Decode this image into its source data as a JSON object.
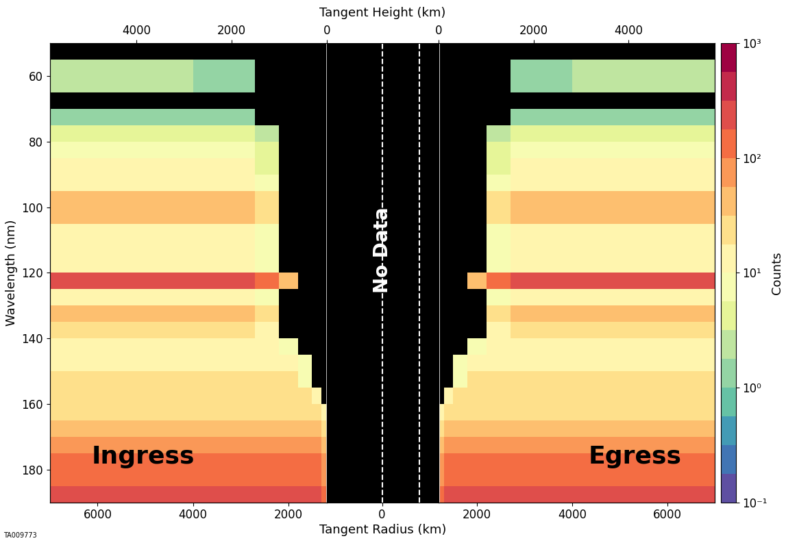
{
  "chart_data": {
    "type": "heatmap",
    "x_label": "Tangent Radius (km)",
    "x2_label": "Tangent Height (km)",
    "y_label": "Wavelength (nm)",
    "colorbar_label": "Counts",
    "figure_id": "TA009773",
    "log": true,
    "ylim": [
      190,
      50
    ],
    "yticks": [
      60,
      80,
      100,
      120,
      140,
      160,
      180
    ],
    "y_bins": [
      50,
      55,
      60,
      65,
      70,
      75,
      80,
      85,
      90,
      95,
      100,
      105,
      110,
      115,
      120,
      125,
      130,
      135,
      140,
      145,
      150,
      155,
      160,
      165,
      170,
      175,
      180,
      185,
      190
    ],
    "colorbar_range": [
      0.1,
      1000
    ],
    "colorbar_ticks": [
      {
        "value": 0.1,
        "label": "10⁻¹"
      },
      {
        "value": 1,
        "label": "10⁰"
      },
      {
        "value": 10,
        "label": "10¹"
      },
      {
        "value": 100,
        "label": "10²"
      },
      {
        "value": 1000,
        "label": "10³"
      }
    ],
    "panels": [
      {
        "name": "Ingress",
        "xlim": [
          7000,
          1190
        ],
        "xticks": [
          6000,
          4000,
          2000
        ],
        "x2lim": [
          5810,
          0
        ],
        "x2ticks": [
          4000,
          2000,
          0
        ],
        "x_bins": [
          1190,
          1300,
          1500,
          1800,
          2200,
          2700,
          4000,
          5500,
          7000
        ],
        "cells": [
          [
            0,
            0,
            0,
            0,
            0,
            0,
            0,
            0
          ],
          [
            0,
            0,
            0,
            0,
            0,
            1,
            2,
            2
          ],
          [
            0,
            0,
            0,
            0,
            0,
            1,
            2,
            2
          ],
          [
            0,
            0,
            0,
            0,
            0,
            0,
            0,
            0
          ],
          [
            0,
            0,
            0,
            0,
            0,
            1,
            1.5,
            1.5
          ],
          [
            0,
            0,
            0,
            0,
            2,
            4,
            5,
            5
          ],
          [
            0,
            0,
            0,
            0,
            4,
            8,
            8,
            8
          ],
          [
            0,
            0,
            0,
            0,
            5,
            10,
            10,
            10
          ],
          [
            0,
            0,
            0,
            0,
            6,
            12,
            12,
            12
          ],
          [
            0,
            0,
            0,
            0,
            20,
            40,
            40,
            40
          ],
          [
            0,
            0,
            0,
            0,
            20,
            40,
            40,
            40
          ],
          [
            0,
            0,
            0,
            0,
            8,
            15,
            15,
            15
          ],
          [
            0,
            0,
            0,
            0,
            6,
            12,
            12,
            12
          ],
          [
            0,
            0,
            0,
            0,
            8,
            15,
            15,
            15
          ],
          [
            0,
            0,
            0,
            50,
            150,
            300,
            300,
            300
          ],
          [
            0,
            0,
            0,
            0,
            8,
            15,
            15,
            15
          ],
          [
            0,
            0,
            0,
            0,
            20,
            40,
            40,
            40
          ],
          [
            0,
            0,
            0,
            0,
            10,
            20,
            20,
            20
          ],
          [
            0,
            0,
            0,
            8,
            15,
            15,
            15,
            15
          ],
          [
            0,
            0,
            8,
            15,
            15,
            15,
            15,
            15
          ],
          [
            0,
            0,
            9,
            18,
            18,
            18,
            18,
            18
          ],
          [
            0,
            10,
            20,
            20,
            20,
            20,
            20,
            20
          ],
          [
            15,
            25,
            25,
            25,
            25,
            25,
            25,
            25
          ],
          [
            20,
            35,
            35,
            35,
            35,
            35,
            35,
            35
          ],
          [
            50,
            80,
            80,
            80,
            80,
            80,
            80,
            80
          ],
          [
            60,
            100,
            100,
            100,
            100,
            100,
            100,
            100
          ],
          [
            90,
            150,
            150,
            150,
            150,
            150,
            150,
            150
          ],
          [
            120,
            200,
            200,
            200,
            200,
            200,
            200,
            200
          ]
        ]
      },
      {
        "name": "No Data",
        "xlim": [
          -900,
          920
        ],
        "xticks": [
          0
        ],
        "dashed_lines": [
          0,
          610
        ]
      },
      {
        "name": "Egress",
        "xlim": [
          1190,
          7000
        ],
        "xticks": [
          2000,
          4000,
          6000
        ],
        "x2lim": [
          0,
          5810
        ],
        "x2ticks": [
          0,
          2000,
          4000
        ],
        "x_bins": [
          1190,
          1300,
          1500,
          1800,
          2200,
          2700,
          4000,
          5500,
          7000
        ],
        "cells": [
          [
            0,
            0,
            0,
            0,
            0,
            0,
            0,
            0
          ],
          [
            0,
            0,
            0,
            0,
            0,
            1,
            2,
            2
          ],
          [
            0,
            0,
            0,
            0,
            0,
            1,
            2,
            2
          ],
          [
            0,
            0,
            0,
            0,
            0,
            0,
            0,
            0
          ],
          [
            0,
            0,
            0,
            0,
            0,
            1,
            1.5,
            1.5
          ],
          [
            0,
            0,
            0,
            0,
            2,
            4,
            5,
            5
          ],
          [
            0,
            0,
            0,
            0,
            4,
            8,
            8,
            8
          ],
          [
            0,
            0,
            0,
            0,
            5,
            10,
            10,
            10
          ],
          [
            0,
            0,
            0,
            0,
            6,
            12,
            12,
            12
          ],
          [
            0,
            0,
            0,
            0,
            20,
            40,
            40,
            40
          ],
          [
            0,
            0,
            0,
            0,
            20,
            40,
            40,
            40
          ],
          [
            0,
            0,
            0,
            0,
            8,
            15,
            15,
            15
          ],
          [
            0,
            0,
            0,
            0,
            6,
            12,
            12,
            12
          ],
          [
            0,
            0,
            0,
            0,
            8,
            15,
            15,
            15
          ],
          [
            0,
            0,
            0,
            50,
            150,
            300,
            300,
            300
          ],
          [
            0,
            0,
            0,
            0,
            8,
            15,
            15,
            15
          ],
          [
            0,
            0,
            0,
            0,
            20,
            40,
            40,
            40
          ],
          [
            0,
            0,
            0,
            0,
            10,
            20,
            20,
            20
          ],
          [
            0,
            0,
            0,
            8,
            15,
            15,
            15,
            15
          ],
          [
            0,
            0,
            8,
            15,
            15,
            15,
            15,
            15
          ],
          [
            0,
            0,
            9,
            18,
            18,
            18,
            18,
            18
          ],
          [
            0,
            10,
            20,
            20,
            20,
            20,
            20,
            20
          ],
          [
            15,
            25,
            25,
            25,
            25,
            25,
            25,
            25
          ],
          [
            20,
            35,
            35,
            35,
            35,
            35,
            35,
            35
          ],
          [
            50,
            80,
            80,
            80,
            80,
            80,
            80,
            80
          ],
          [
            60,
            100,
            100,
            100,
            100,
            100,
            100,
            100
          ],
          [
            90,
            150,
            150,
            150,
            150,
            150,
            150,
            150
          ],
          [
            120,
            200,
            200,
            200,
            200,
            200,
            200,
            200
          ]
        ]
      }
    ]
  }
}
